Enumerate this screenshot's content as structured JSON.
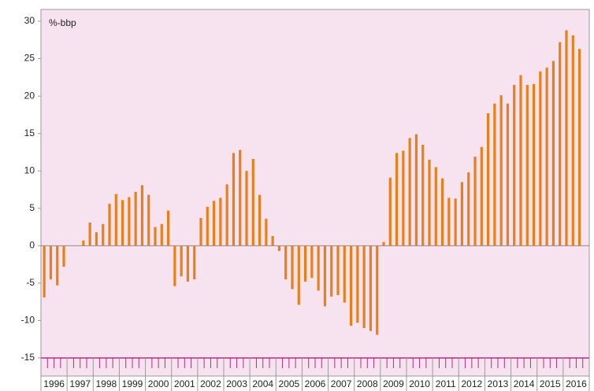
{
  "chart_data": {
    "type": "bar",
    "ylabel": "%-bbp",
    "color": "#e8801a",
    "axis_color": "#b0307f",
    "background": "#f7e3ef",
    "categories": [
      "1996",
      null,
      null,
      null,
      "1997",
      null,
      null,
      null,
      "1998",
      null,
      null,
      null,
      "1999",
      null,
      null,
      null,
      "2000",
      null,
      null,
      null,
      "2001",
      null,
      null,
      null,
      "2002",
      null,
      null,
      null,
      "2003",
      null,
      null,
      null,
      "2004",
      null,
      null,
      null,
      "2005",
      null,
      null,
      null,
      "2006",
      null,
      null,
      null,
      "2007",
      null,
      null,
      null,
      "2008",
      null,
      null,
      null,
      "2009",
      null,
      null,
      null,
      "2010",
      null,
      null,
      null,
      "2011",
      null,
      null,
      null,
      "2012",
      null,
      null,
      null,
      "2013",
      null,
      null,
      null,
      "2014",
      null,
      null,
      null,
      "2015",
      null,
      null,
      null,
      "2016",
      null,
      null,
      null
    ],
    "values": [
      -6.9,
      -4.5,
      -5.3,
      -2.8,
      0,
      0,
      0.7,
      3.1,
      1.8,
      2.9,
      5.6,
      6.9,
      6.1,
      6.5,
      7.2,
      8.1,
      6.8,
      2.5,
      2.9,
      4.7,
      -5.4,
      -4.1,
      -4.8,
      -4.5,
      3.7,
      5.2,
      6.0,
      6.4,
      8.2,
      12.4,
      12.8,
      10.0,
      11.6,
      6.8,
      3.6,
      1.3,
      -0.7,
      -4.5,
      -5.8,
      -7.9,
      -4.8,
      -4.3,
      -6.0,
      -8.1,
      -6.8,
      -6.6,
      -7.6,
      -10.7,
      -10.3,
      -11.0,
      -11.4,
      -11.9,
      0.5,
      9.1,
      12.4,
      12.7,
      14.4,
      14.9,
      13.5,
      11.5,
      10.5,
      9.0,
      6.4,
      6.3,
      8.5,
      9.8,
      11.9,
      13.2,
      17.7,
      19.0,
      20.1,
      19.0,
      21.5,
      22.8,
      21.5,
      21.6,
      23.3,
      23.8,
      24.7,
      27.2,
      28.8,
      28.1,
      26.3,
      null
    ],
    "ylim": [
      -15,
      30
    ],
    "yticks": [
      -15,
      -10,
      -5,
      0,
      5,
      10,
      15,
      20,
      25,
      30
    ],
    "grid": false
  }
}
